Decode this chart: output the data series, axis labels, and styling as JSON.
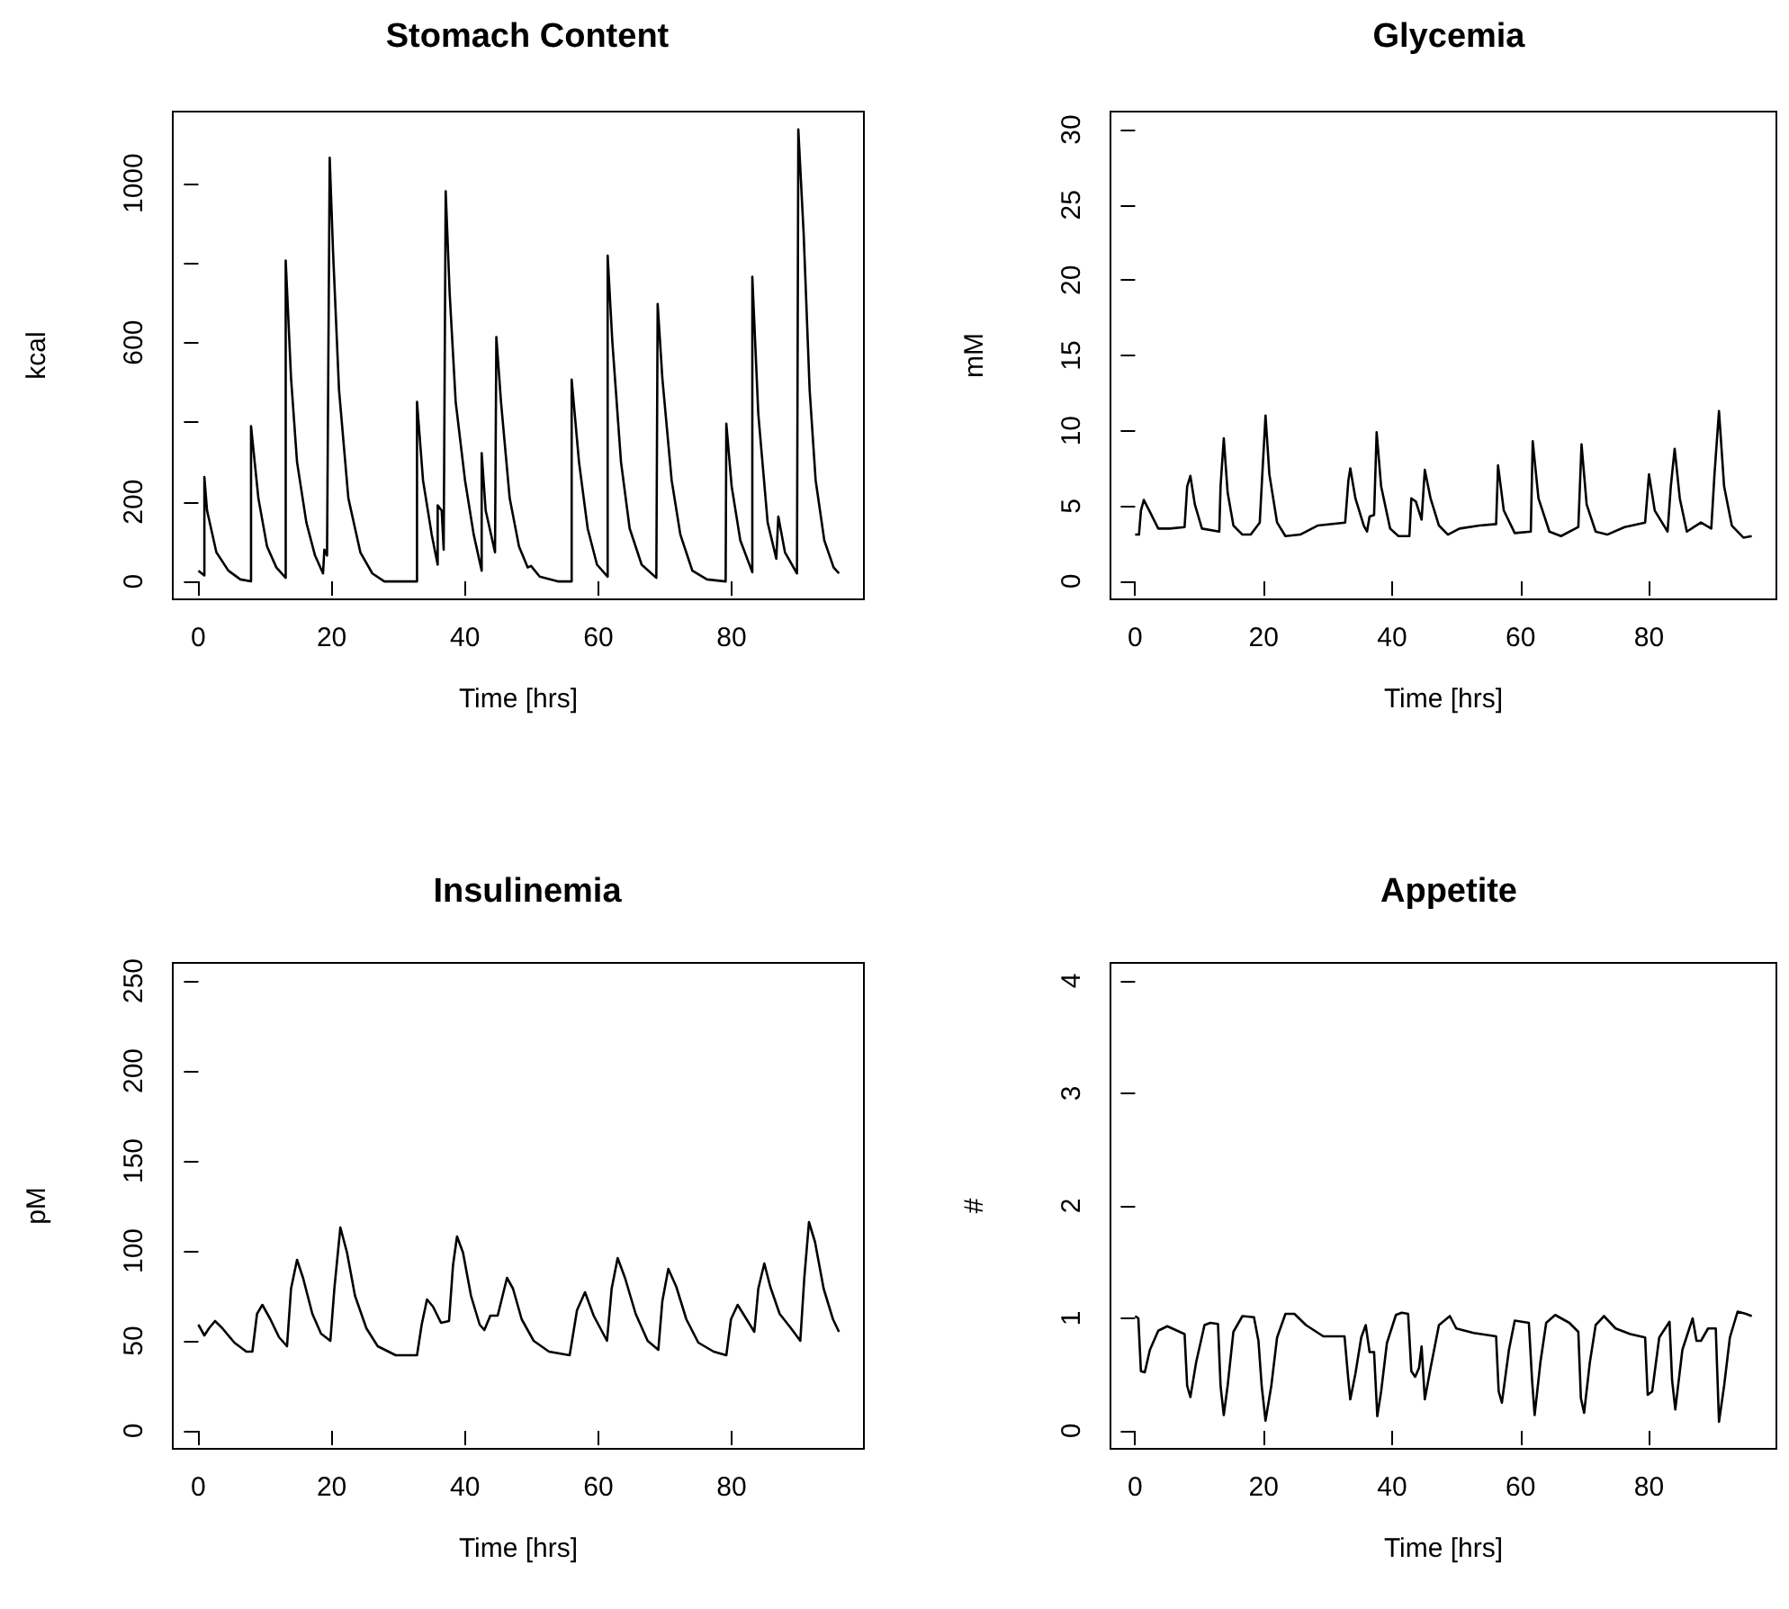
{
  "chart_data": [
    {
      "type": "line",
      "title": "Stomach Content",
      "xlabel": "Time [hrs]",
      "ylabel": "kcal",
      "grid": false,
      "xlim": [
        -3.84,
        99.84
      ],
      "xticks": [
        0,
        20,
        40,
        60,
        80
      ],
      "ylim": [
        -45,
        1180
      ],
      "yticks": [
        0,
        200,
        {
          "value": 400,
          "label": null
        },
        600,
        {
          "value": 800,
          "label": null
        },
        1000
      ],
      "series": [
        {
          "color": "#000000",
          "x": [
            0,
            0.9,
            0.9,
            1.3,
            2.7,
            4.5,
            6.3,
            7.9,
            7.9,
            9.0,
            10.3,
            11.7,
            13.1,
            13.1,
            13.9,
            14.8,
            16.2,
            17.5,
            18.7,
            18.9,
            19.3,
            19.7,
            20.2,
            21.1,
            22.5,
            24.3,
            26.1,
            27.9,
            32.8,
            32.8,
            33.7,
            35.0,
            35.9,
            35.9,
            36.5,
            36.8,
            37.1,
            37.7,
            38.6,
            40.0,
            41.3,
            42.5,
            42.5,
            43.1,
            44.5,
            44.7,
            45.4,
            46.7,
            48.1,
            49.4,
            49.9,
            51.2,
            53.9,
            56.0,
            56.0,
            57.1,
            58.4,
            59.8,
            61.4,
            61.4,
            62.1,
            63.4,
            64.7,
            66.5,
            68.7,
            68.9,
            69.6,
            71.0,
            72.3,
            74.1,
            76.3,
            79.1,
            79.2,
            80.0,
            81.3,
            83.1,
            83.1,
            84.0,
            85.4,
            86.7,
            87.0,
            88.0,
            89.8,
            90.0,
            90.8,
            91.7,
            92.6,
            93.9,
            95.3,
            96.1
          ],
          "values": [
            27,
            15,
            262,
            178,
            73,
            27,
            5,
            0,
            390,
            209,
            88,
            35,
            9,
            806,
            511,
            300,
            148,
            65,
            20,
            80,
            65,
            1064,
            829,
            481,
            209,
            73,
            20,
            0,
            0,
            451,
            254,
            118,
            42,
            191,
            178,
            80,
            980,
            723,
            451,
            254,
            118,
            27,
            322,
            178,
            73,
            614,
            451,
            209,
            88,
            35,
            39,
            12,
            0,
            0,
            507,
            300,
            133,
            42,
            12,
            818,
            602,
            300,
            133,
            42,
            9,
            697,
            511,
            254,
            118,
            27,
            5,
            0,
            396,
            239,
            103,
            23,
            765,
            420,
            148,
            57,
            163,
            73,
            20,
            1135,
            874,
            481,
            254,
            103,
            35,
            20
          ]
        }
      ]
    },
    {
      "type": "line",
      "title": "Glycemia",
      "xlabel": "Time [hrs]",
      "ylabel": "mM",
      "grid": false,
      "xlim": [
        -3.84,
        99.84
      ],
      "xticks": [
        0,
        20,
        40,
        60,
        80
      ],
      "ylim": [
        -1.2,
        31.2
      ],
      "yticks": [
        0,
        5,
        10,
        15,
        20,
        25,
        30
      ],
      "series": [
        {
          "color": "#000000",
          "x": [
            0,
            0.6,
            0.9,
            1.35,
            2.2,
            3.6,
            5.4,
            7.7,
            8.1,
            8.6,
            9.3,
            10.4,
            13.1,
            13.3,
            13.8,
            14.4,
            15.3,
            16.7,
            18.0,
            19.4,
            19.8,
            20.3,
            20.9,
            22.1,
            23.4,
            25.7,
            28.4,
            32.7,
            33.2,
            33.5,
            34.3,
            35.6,
            36.1,
            36.5,
            37.2,
            37.6,
            38.3,
            39.7,
            41.0,
            42.7,
            43.0,
            43.7,
            44.6,
            45.1,
            46.0,
            47.3,
            48.7,
            50.5,
            53.6,
            56.2,
            56.5,
            57.4,
            59.1,
            61.6,
            61.9,
            62.8,
            64.5,
            66.3,
            69.0,
            69.5,
            70.3,
            71.7,
            73.5,
            76.2,
            79.4,
            80.0,
            80.9,
            82.9,
            83.4,
            84.0,
            84.8,
            85.9,
            87.0,
            88.1,
            89.7,
            90.2,
            90.9,
            91.7,
            92.9,
            94.7,
            96.0
          ],
          "values": [
            3.1,
            3.1,
            4.7,
            5.4,
            4.7,
            3.5,
            3.5,
            3.6,
            6.3,
            7.0,
            5.1,
            3.5,
            3.3,
            6.3,
            9.5,
            5.9,
            3.7,
            3.1,
            3.1,
            3.9,
            7.1,
            11.0,
            7.1,
            3.9,
            3.0,
            3.1,
            3.7,
            3.9,
            6.7,
            7.5,
            5.5,
            3.7,
            3.3,
            4.3,
            4.4,
            9.9,
            6.3,
            3.5,
            3.0,
            3.0,
            5.5,
            5.3,
            4.1,
            7.4,
            5.5,
            3.7,
            3.1,
            3.5,
            3.7,
            3.8,
            7.7,
            4.7,
            3.2,
            3.3,
            9.3,
            5.5,
            3.3,
            3.0,
            3.6,
            9.1,
            5.1,
            3.3,
            3.1,
            3.6,
            3.9,
            7.1,
            4.7,
            3.3,
            6.3,
            8.8,
            5.5,
            3.3,
            3.6,
            3.9,
            3.5,
            7.1,
            11.3,
            6.3,
            3.7,
            2.9,
            3.0
          ]
        }
      ]
    },
    {
      "type": "line",
      "title": "Insulinemia",
      "xlabel": "Time [hrs]",
      "ylabel": "pM",
      "grid": false,
      "xlim": [
        -3.84,
        99.84
      ],
      "xticks": [
        0,
        20,
        40,
        60,
        80
      ],
      "ylim": [
        -10,
        260
      ],
      "yticks": [
        0,
        50,
        100,
        150,
        200,
        250
      ],
      "series": [
        {
          "color": "#000000",
          "x": [
            0,
            0.9,
            1.6,
            2.5,
            3.6,
            5.4,
            7.2,
            8.1,
            8.8,
            9.6,
            10.8,
            12.1,
            13.3,
            13.9,
            14.8,
            15.7,
            17.1,
            18.4,
            19.8,
            20.4,
            21.3,
            22.3,
            23.5,
            25.2,
            26.9,
            29.6,
            32.8,
            33.5,
            34.3,
            35.2,
            36.4,
            37.6,
            38.2,
            38.8,
            39.7,
            40.9,
            42.2,
            42.9,
            43.8,
            44.9,
            46.3,
            47.2,
            48.5,
            50.3,
            52.6,
            55.7,
            56.8,
            58.0,
            59.3,
            61.3,
            62.0,
            62.9,
            64.0,
            65.6,
            67.4,
            69.0,
            69.6,
            70.5,
            71.7,
            73.2,
            75.0,
            77.3,
            79.2,
            79.9,
            80.9,
            81.9,
            83.4,
            84.0,
            84.9,
            85.8,
            87.2,
            88.9,
            90.3,
            90.9,
            91.6,
            92.5,
            93.8,
            95.2,
            96.1
          ],
          "values": [
            59,
            53,
            57,
            61,
            57,
            49,
            44,
            44,
            65,
            70,
            62,
            52,
            47,
            79,
            95,
            85,
            65,
            54,
            50,
            79,
            113,
            99,
            75,
            57,
            47,
            42,
            42,
            59,
            73,
            69,
            60,
            61,
            92,
            108,
            99,
            75,
            59,
            56,
            64,
            64,
            85,
            79,
            62,
            50,
            44,
            42,
            67,
            77,
            64,
            50,
            79,
            96,
            85,
            65,
            50,
            45,
            72,
            90,
            80,
            62,
            49,
            44,
            42,
            62,
            70,
            64,
            55,
            79,
            93,
            80,
            65,
            57,
            50,
            85,
            116,
            105,
            79,
            62,
            55
          ]
        }
      ]
    },
    {
      "type": "line",
      "title": "Appetite",
      "xlabel": "Time [hrs]",
      "ylabel": "#",
      "grid": false,
      "xlim": [
        -3.84,
        99.84
      ],
      "xticks": [
        0,
        20,
        40,
        60,
        80
      ],
      "ylim": [
        -0.16,
        4.16
      ],
      "yticks": [
        0,
        1,
        2,
        3,
        4
      ],
      "series": [
        {
          "color": "#000000",
          "x": [
            0,
            0.5,
            0.9,
            1.5,
            2.3,
            3.6,
            5.0,
            7.7,
            8.1,
            8.6,
            9.5,
            10.8,
            11.7,
            12.9,
            13.3,
            13.8,
            14.4,
            15.3,
            16.7,
            18.5,
            19.2,
            19.7,
            20.3,
            21.2,
            22.1,
            23.4,
            24.8,
            26.6,
            29.3,
            32.6,
            33.2,
            33.5,
            34.3,
            35.2,
            35.9,
            36.5,
            37.2,
            37.7,
            38.3,
            39.2,
            40.6,
            41.5,
            42.5,
            43.0,
            43.6,
            44.2,
            44.6,
            45.1,
            46.0,
            47.3,
            49.0,
            50.0,
            52.7,
            56.2,
            56.6,
            57.1,
            58.2,
            59.1,
            61.3,
            61.8,
            62.2,
            63.1,
            64.0,
            65.4,
            67.6,
            69.0,
            69.4,
            69.9,
            70.8,
            71.7,
            73.0,
            74.8,
            77.1,
            79.4,
            79.8,
            80.5,
            81.6,
            83.2,
            83.6,
            84.1,
            85.2,
            86.8,
            87.4,
            88.1,
            89.2,
            90.4,
            90.9,
            91.7,
            92.6,
            93.8,
            95.1,
            96.0
          ],
          "values": [
            1.02,
            1.0,
            0.53,
            0.52,
            0.72,
            0.89,
            0.93,
            0.86,
            0.4,
            0.3,
            0.61,
            0.94,
            0.96,
            0.95,
            0.4,
            0.14,
            0.4,
            0.88,
            1.02,
            1.01,
            0.8,
            0.4,
            0.09,
            0.4,
            0.83,
            1.04,
            1.04,
            0.94,
            0.84,
            0.84,
            0.45,
            0.28,
            0.51,
            0.83,
            0.94,
            0.7,
            0.7,
            0.13,
            0.35,
            0.78,
            1.03,
            1.05,
            1.04,
            0.53,
            0.48,
            0.56,
            0.75,
            0.28,
            0.56,
            0.94,
            1.02,
            0.91,
            0.87,
            0.84,
            0.35,
            0.25,
            0.72,
            0.98,
            0.96,
            0.45,
            0.14,
            0.61,
            0.96,
            1.03,
            0.96,
            0.88,
            0.29,
            0.16,
            0.61,
            0.94,
            1.02,
            0.91,
            0.86,
            0.83,
            0.32,
            0.35,
            0.83,
            0.97,
            0.45,
            0.19,
            0.72,
            1.0,
            0.8,
            0.8,
            0.91,
            0.91,
            0.08,
            0.4,
            0.83,
            1.06,
            1.04,
            1.02
          ]
        }
      ]
    }
  ]
}
